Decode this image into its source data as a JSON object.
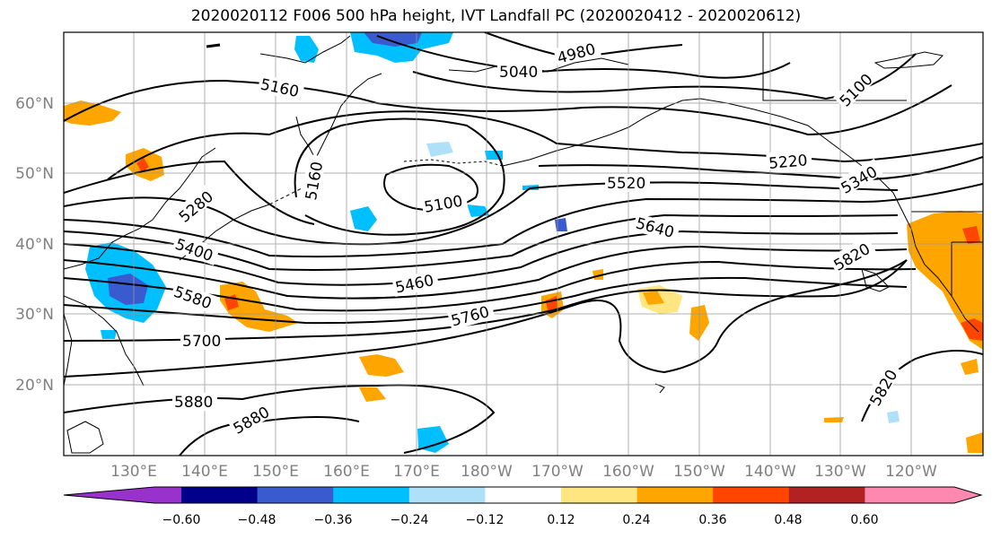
{
  "title": "2020020112 F006 500 hPa height, IVT Landfall PC (2020020412 - 2020020612)",
  "lat_labels": [
    "60°N",
    "50°N",
    "40°N",
    "30°N",
    "20°N"
  ],
  "lon_labels": [
    "130°E",
    "140°E",
    "150°E",
    "160°E",
    "170°E",
    "180°W",
    "170°W",
    "160°W",
    "150°W",
    "140°W",
    "130°W",
    "120°W"
  ],
  "colorbar": {
    "tick_labels": [
      "−0.60",
      "−0.48",
      "−0.36",
      "−0.24",
      "−0.12",
      "0.12",
      "0.24",
      "0.36",
      "0.48",
      "0.60"
    ],
    "colors": [
      "#9932cc",
      "#00008b",
      "#3a5bd0",
      "#00bfff",
      "#afe0fa",
      "#ffffff",
      "#ffe680",
      "#ffa500",
      "#ff4500",
      "#b22222",
      "#ff88b0"
    ]
  },
  "contour_labels": {
    "c4980": "4980",
    "c5040": "5040",
    "c5100a": "5100",
    "c5160a": "5160",
    "c5160b": "5160",
    "c5100b": "5100",
    "c5220": "5220",
    "c5340": "5340",
    "c5280": "5280",
    "c5520": "5520",
    "c5640": "5640",
    "c5400": "5400",
    "c5460": "5460",
    "c5580": "5580",
    "c5760": "5760",
    "c5820a": "5820",
    "c5700": "5700",
    "c5880a": "5880",
    "c5880b": "5880",
    "c5820b": "5820"
  }
}
